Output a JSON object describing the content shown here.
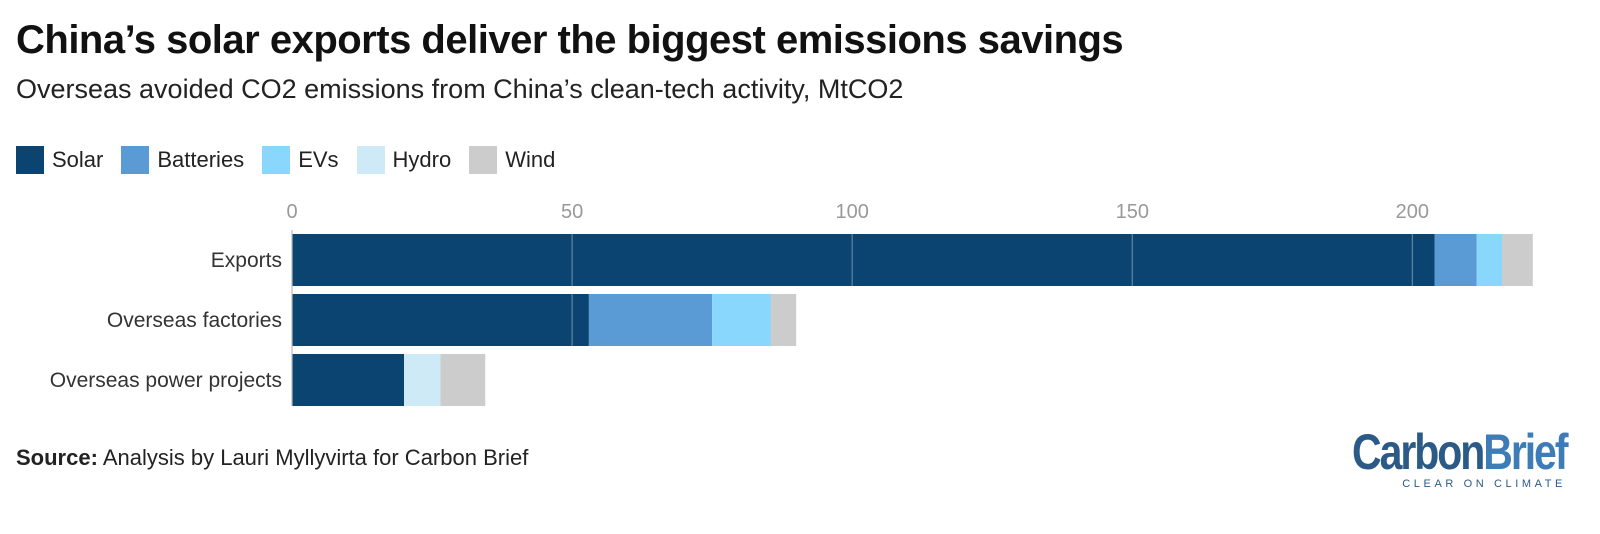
{
  "header": {
    "title": "China’s solar exports deliver the biggest emissions savings",
    "subtitle": "Overseas avoided CO2 emissions from China’s clean-tech activity, MtCO2"
  },
  "footer": {
    "source_label": "Source:",
    "source_text": "Analysis by Lauri Myllyvirta for Carbon Brief"
  },
  "logo": {
    "carbon": "Carbon",
    "brief": "Brief",
    "tagline": "CLEAR ON CLIMATE"
  },
  "chart_data": {
    "type": "bar",
    "orientation": "horizontal",
    "stacked": true,
    "title": "China’s solar exports deliver the biggest emissions savings",
    "subtitle": "Overseas avoided CO2 emissions from China’s clean-tech activity, MtCO2",
    "categories": [
      "Exports",
      "Overseas factories",
      "Overseas power projects"
    ],
    "series": [
      {
        "name": "Solar",
        "color": "#0b4470",
        "values": [
          204,
          53,
          20
        ]
      },
      {
        "name": "Batteries",
        "color": "#5b9bd5",
        "values": [
          7.5,
          22,
          0
        ]
      },
      {
        "name": "EVs",
        "color": "#8ad7fd",
        "values": [
          4.5,
          10.5,
          0
        ]
      },
      {
        "name": "Hydro",
        "color": "#cfeaf7",
        "values": [
          0,
          0,
          6.5
        ]
      },
      {
        "name": "Wind",
        "color": "#cccccc",
        "values": [
          5.5,
          4.5,
          8
        ]
      }
    ],
    "xlim": [
      0,
      221
    ],
    "xticks": [
      0,
      50,
      100,
      150,
      200
    ],
    "grid": true,
    "legend_position": "top-left"
  }
}
